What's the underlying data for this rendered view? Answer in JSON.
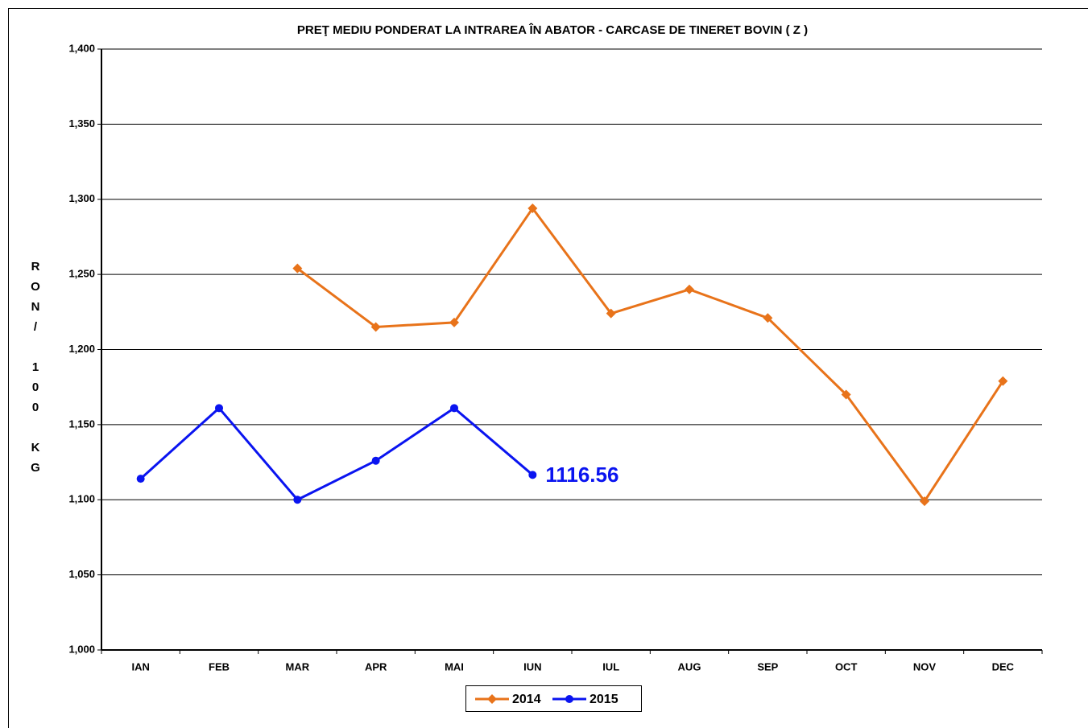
{
  "chart_data": {
    "type": "line",
    "title": "PREŢ MEDIU PONDERAT LA INTRAREA ÎN ABATOR - CARCASE DE TINERET BOVIN ( Z )",
    "y_label": "RON/ 100 KG",
    "categories": [
      "IAN",
      "FEB",
      "MAR",
      "APR",
      "MAI",
      "IUN",
      "IUL",
      "AUG",
      "SEP",
      "OCT",
      "NOV",
      "DEC"
    ],
    "series": [
      {
        "name": "2014",
        "color": "#e8731a",
        "marker": "diamond",
        "values": [
          null,
          null,
          1254,
          1215,
          1218,
          1294,
          1224,
          1240,
          1221,
          1170,
          1099,
          1179
        ]
      },
      {
        "name": "2015",
        "color": "#0a14f0",
        "marker": "circle",
        "label_last": true,
        "values": [
          1114,
          1161,
          1100,
          1126,
          1161,
          1116.56,
          null,
          null,
          null,
          null,
          null,
          null
        ]
      }
    ],
    "ylim": [
      1000,
      1400
    ],
    "yticks": [
      {
        "value": 1000,
        "label": "1,000"
      },
      {
        "value": 1050,
        "label": "1,050"
      },
      {
        "value": 1100,
        "label": "1,100"
      },
      {
        "value": 1150,
        "label": "1,150"
      },
      {
        "value": 1200,
        "label": "1,200"
      },
      {
        "value": 1250,
        "label": "1,250"
      },
      {
        "value": 1300,
        "label": "1,300"
      },
      {
        "value": 1350,
        "label": "1,350"
      },
      {
        "value": 1400,
        "label": "1,400"
      }
    ],
    "grid": true,
    "legend": "bottom"
  }
}
